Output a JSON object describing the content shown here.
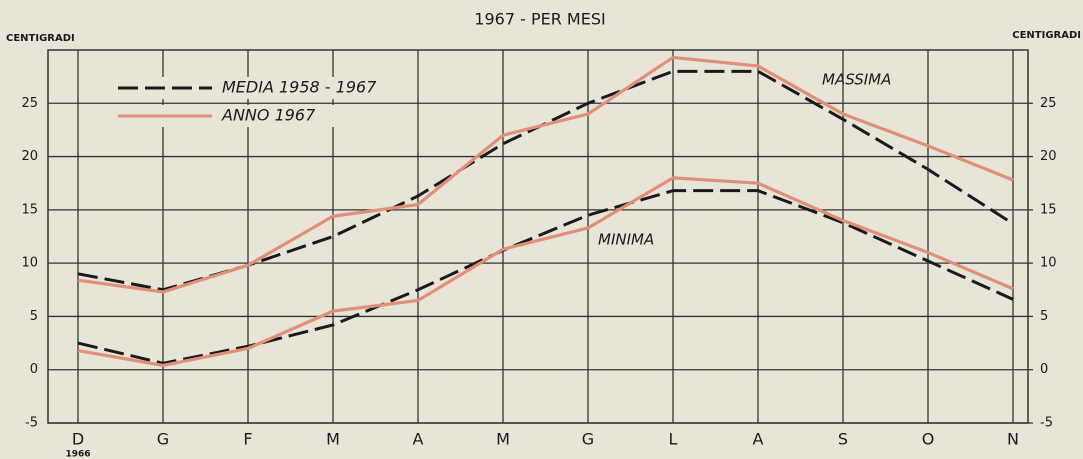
{
  "chart_data": {
    "type": "line",
    "title": "1967 - PER MESI",
    "ylabel": "CENTIGRADI",
    "y2label": "CENTIGRADI",
    "categories": [
      "D",
      "G",
      "F",
      "M",
      "A",
      "M",
      "G",
      "L",
      "A",
      "S",
      "O",
      "N"
    ],
    "first_category_note": "1966",
    "series": [
      {
        "name": "MEDIA 1958 - 1967",
        "color": "#1a1a1a",
        "dashed": true,
        "values": [
          9,
          7.5,
          9.8,
          12.5,
          16.3,
          21.2,
          25,
          28,
          28,
          23.5,
          18.8,
          13.7
        ]
      },
      {
        "name": "ANNO 1967",
        "color": "#e0907a",
        "dashed": false,
        "values": [
          8.4,
          7.3,
          9.8,
          14.4,
          15.5,
          22,
          24,
          29.3,
          28.5,
          24,
          21,
          17.8
        ]
      },
      {
        "color": "#1a1a1a",
        "dashed": true,
        "values": [
          2.5,
          0.6,
          2.2,
          4.2,
          7.5,
          11.2,
          14.5,
          16.8,
          16.8,
          13.8,
          10.2,
          6.6
        ]
      },
      {
        "color": "#e0907a",
        "dashed": false,
        "values": [
          1.8,
          0.4,
          2,
          5.5,
          6.5,
          11.3,
          13.3,
          18,
          17.5,
          14,
          11,
          7.6
        ]
      }
    ],
    "annotations": [
      "MASSIMA",
      "MINIMA"
    ],
    "ylim": [
      -5,
      30
    ],
    "yticks": [
      -5,
      0,
      5,
      10,
      15,
      20,
      25
    ],
    "y2lim": [
      -5,
      30
    ],
    "y2ticks": [
      -5,
      0,
      5,
      10,
      15,
      20,
      25
    ],
    "grid": true,
    "legend": "upper left"
  }
}
